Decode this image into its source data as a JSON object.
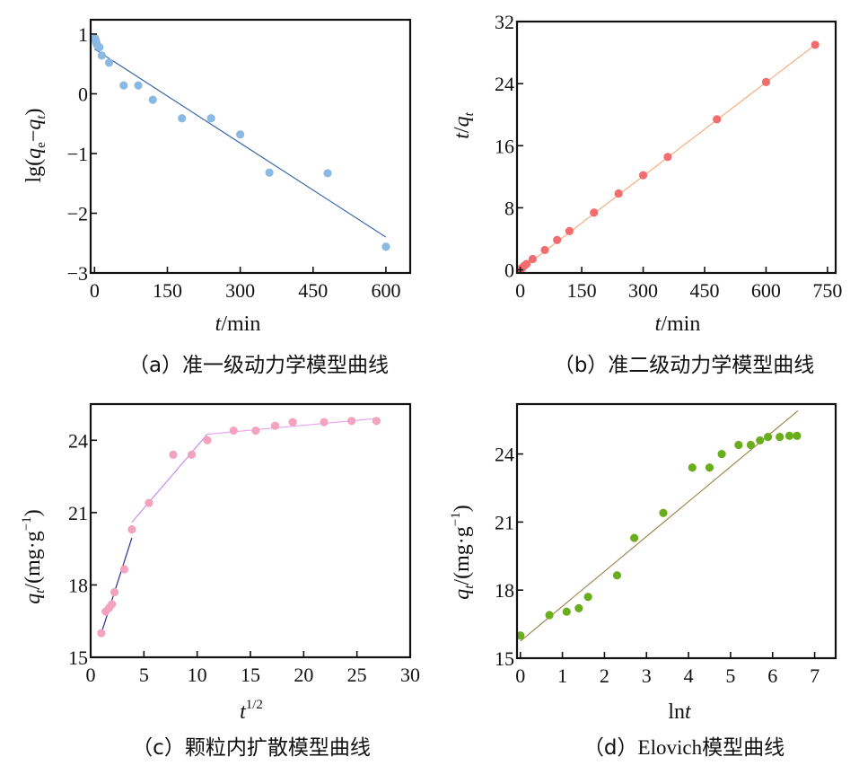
{
  "chart_data": [
    {
      "id": "a",
      "type": "scatter",
      "caption": "（a）准一级动力学模型曲线",
      "xlabel_italic": "t",
      "xlabel_rest": "/min",
      "ylabel": "lg(q_e−q_t)",
      "ylabel_parts": {
        "prefix": "lg(",
        "q1": "q",
        "sub1": "e",
        "minus": "−",
        "q2": "q",
        "sub2": "t",
        "suffix": ")"
      },
      "xlim": [
        -8,
        650
      ],
      "ylim": [
        -3,
        1.24
      ],
      "xticks": [
        0,
        150,
        300,
        450,
        600
      ],
      "xtick_labels": [
        "0",
        "150",
        "300",
        "450",
        "600"
      ],
      "yticks": [
        1,
        0,
        -1,
        -2,
        -3
      ],
      "ytick_labels": [
        "1",
        "0",
        "−1",
        "−2",
        "−3"
      ],
      "point_color": "#8AB9E4",
      "line_color": "#2C5FA0",
      "x": [
        1,
        2,
        3,
        4,
        5,
        10,
        15,
        30,
        60,
        90,
        120,
        180,
        240,
        300,
        360,
        480,
        600
      ],
      "y": [
        0.93,
        0.9,
        0.87,
        0.85,
        0.82,
        0.78,
        0.64,
        0.52,
        0.14,
        0.14,
        -0.1,
        -0.41,
        -0.41,
        -0.68,
        -1.32,
        -1.33,
        -2.56
      ],
      "fit_line": {
        "x": [
          0,
          600
        ],
        "y": [
          0.75,
          -2.4
        ]
      },
      "grid": false
    },
    {
      "id": "b",
      "type": "scatter",
      "caption": "（b）准二级动力学模型曲线",
      "xlabel_italic": "t",
      "xlabel_rest": "/min",
      "ylabel_parts": {
        "t": "t",
        "slash": "/",
        "q": "q",
        "sub": "t"
      },
      "xlim": [
        -8,
        770
      ],
      "ylim": [
        -0.4,
        32
      ],
      "xticks": [
        0,
        150,
        300,
        450,
        600,
        750
      ],
      "xtick_labels": [
        "0",
        "150",
        "300",
        "450",
        "600",
        "750"
      ],
      "yticks": [
        0,
        8,
        16,
        24,
        32
      ],
      "ytick_labels": [
        "0",
        "8",
        "16",
        "24",
        "32"
      ],
      "point_color": "#F26D6D",
      "line_color": "#F5A778",
      "x": [
        1,
        2,
        3,
        4,
        5,
        10,
        15,
        30,
        60,
        90,
        120,
        180,
        240,
        300,
        360,
        480,
        600,
        720
      ],
      "y": [
        0.06,
        0.12,
        0.18,
        0.23,
        0.28,
        0.54,
        0.74,
        1.4,
        2.56,
        3.85,
        5.0,
        7.38,
        9.84,
        12.2,
        14.55,
        19.4,
        24.2,
        29.0
      ],
      "fit_line": {
        "x": [
          0,
          720
        ],
        "y": [
          0.0,
          29.0
        ]
      },
      "grid": false
    },
    {
      "id": "c",
      "type": "scatter",
      "caption": "（c）颗粒内扩散模型曲线",
      "xlabel_base": "t",
      "xlabel_sup": "1/2",
      "ylabel_parts": {
        "q": "q",
        "sub": "t",
        "unit": "/(mg·g",
        "sup": "−1",
        "close": ")"
      },
      "xlim": [
        0,
        30
      ],
      "ylim": [
        15,
        25.5
      ],
      "xticks": [
        0,
        5,
        10,
        15,
        20,
        25,
        30
      ],
      "xtick_labels": [
        "0",
        "5",
        "10",
        "15",
        "20",
        "25",
        "30"
      ],
      "yticks": [
        15,
        18,
        21,
        24
      ],
      "ytick_labels": [
        "15",
        "18",
        "21",
        "24"
      ],
      "point_color": "#F4A3BF",
      "x": [
        1.0,
        1.41,
        1.73,
        2.0,
        2.24,
        3.16,
        3.87,
        5.48,
        7.75,
        9.49,
        10.95,
        13.42,
        15.49,
        17.32,
        18.97,
        21.91,
        24.49,
        26.83
      ],
      "y": [
        16.0,
        16.9,
        17.05,
        17.2,
        17.7,
        18.65,
        20.3,
        21.4,
        23.4,
        23.4,
        24.0,
        24.4,
        24.4,
        24.6,
        24.75,
        24.75,
        24.8,
        24.8
      ],
      "fit_segments": [
        {
          "x": [
            1.0,
            3.87
          ],
          "y": [
            16.0,
            19.95
          ],
          "color": "#2B2F8F"
        },
        {
          "x": [
            3.87,
            10.95
          ],
          "y": [
            20.6,
            24.25
          ],
          "color": "#C98BF0"
        },
        {
          "x": [
            10.95,
            26.83
          ],
          "y": [
            24.25,
            24.9
          ],
          "color": "#E9A2F0"
        }
      ],
      "grid": false
    },
    {
      "id": "d",
      "type": "scatter",
      "caption_prefix": "（d）",
      "caption_latin": "Elovich",
      "caption_suffix": "模型曲线",
      "xlabel_base": "ln",
      "xlabel_italic": "t",
      "ylabel_parts": {
        "q": "q",
        "sub": "t",
        "unit": "/(mg·g",
        "sup": "−1",
        "close": ")"
      },
      "xlim": [
        -0.08,
        7.5
      ],
      "ylim": [
        15,
        26.2
      ],
      "xticks": [
        0,
        1,
        2,
        3,
        4,
        5,
        6,
        7
      ],
      "xtick_labels": [
        "0",
        "1",
        "2",
        "3",
        "4",
        "5",
        "6",
        "7"
      ],
      "yticks": [
        15,
        18,
        21,
        24
      ],
      "ytick_labels": [
        "15",
        "18",
        "21",
        "24"
      ],
      "point_color": "#6AAE1E",
      "line_color": "#9C8048",
      "x": [
        0,
        0.69,
        1.1,
        1.39,
        1.61,
        2.3,
        2.71,
        3.4,
        4.09,
        4.5,
        4.79,
        5.19,
        5.48,
        5.7,
        5.89,
        6.17,
        6.4,
        6.58
      ],
      "y": [
        16.0,
        16.9,
        17.05,
        17.2,
        17.7,
        18.65,
        20.3,
        21.4,
        23.4,
        23.4,
        24.0,
        24.4,
        24.4,
        24.6,
        24.75,
        24.75,
        24.8,
        24.8
      ],
      "fit_line": {
        "x": [
          0,
          6.6
        ],
        "y": [
          15.75,
          25.9
        ]
      },
      "grid": false
    }
  ]
}
